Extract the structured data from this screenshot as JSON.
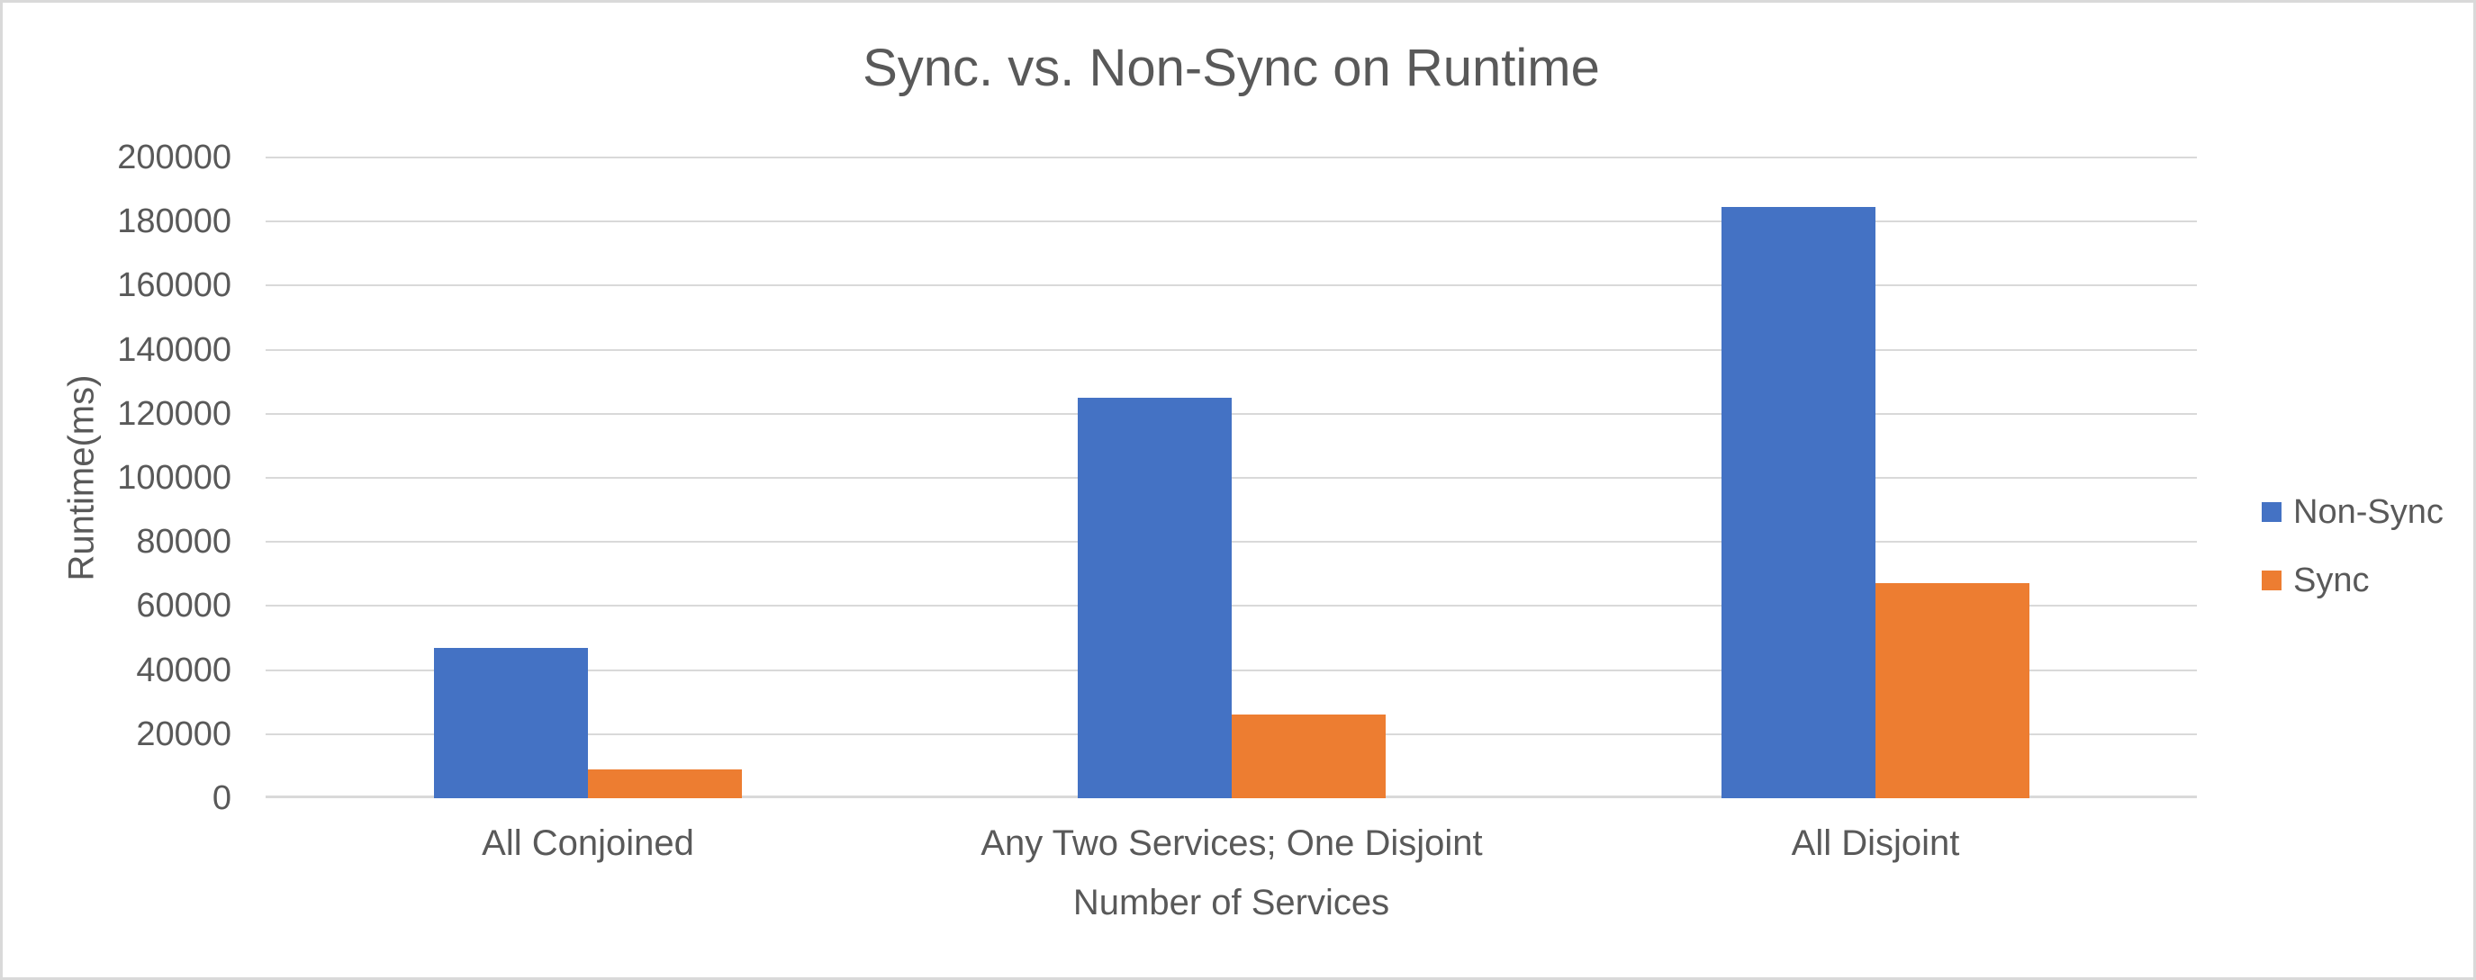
{
  "chart_data": {
    "type": "bar",
    "title": "Sync. vs. Non-Sync on Runtime",
    "xlabel": "Number of Services",
    "ylabel": "Runtime(ms)",
    "categories": [
      "All Conjoined",
      "Any Two Services; One Disjoint",
      "All Disjoint"
    ],
    "series": [
      {
        "name": "Non-Sync",
        "color": "#4472C4",
        "values": [
          47000,
          125000,
          184500
        ]
      },
      {
        "name": "Sync",
        "color": "#ED7D31",
        "values": [
          9000,
          26000,
          67000
        ]
      }
    ],
    "ylim": [
      0,
      200000
    ],
    "yticks": [
      0,
      20000,
      40000,
      60000,
      80000,
      100000,
      120000,
      140000,
      160000,
      180000,
      200000
    ],
    "grid": true,
    "legend_position": "right",
    "colors": {
      "gridline": "#D9D9D9",
      "axis_line": "#D9D9D9",
      "text": "#595959",
      "background": "#FFFFFF",
      "border": "#D9D9D9"
    }
  }
}
